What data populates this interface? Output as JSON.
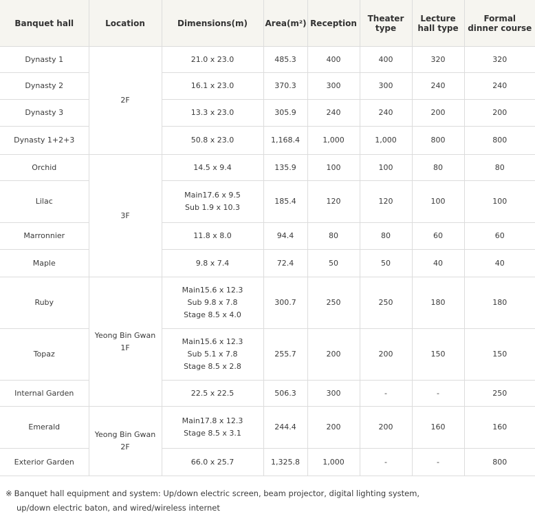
{
  "headers": [
    "Banquet hall",
    "Location",
    "Dimensions(m)",
    "Area(m²)",
    "Reception",
    "Theater\ntype",
    "Lecture\nhall type",
    "Formal\ndinner course"
  ],
  "locations": [
    "2F",
    "3F",
    "Yeong Bin Gwan\n1F",
    "Yeong Bin Gwan\n2F"
  ],
  "rows": [
    {
      "hall": "Dynasty 1",
      "dimensions": "21.0 x 23.0",
      "area": "485.3",
      "reception": "400",
      "theater": "400",
      "lecture": "320",
      "dinner": "320"
    },
    {
      "hall": "Dynasty 2",
      "dimensions": "16.1 x 23.0",
      "area": "370.3",
      "reception": "300",
      "theater": "300",
      "lecture": "240",
      "dinner": "240"
    },
    {
      "hall": "Dynasty 3",
      "dimensions": "13.3 x 23.0",
      "area": "305.9",
      "reception": "240",
      "theater": "240",
      "lecture": "200",
      "dinner": "200"
    },
    {
      "hall": "Dynasty 1+2+3",
      "dimensions": "50.8 x 23.0",
      "area": "1,168.4",
      "reception": "1,000",
      "theater": "1,000",
      "lecture": "800",
      "dinner": "800"
    },
    {
      "hall": "Orchid",
      "dimensions": "14.5 x 9.4",
      "area": "135.9",
      "reception": "100",
      "theater": "100",
      "lecture": "80",
      "dinner": "80"
    },
    {
      "hall": "Lilac",
      "dimensions": "Main17.6 x 9.5\nSub 1.9 x 10.3",
      "area": "185.4",
      "reception": "120",
      "theater": "120",
      "lecture": "100",
      "dinner": "100"
    },
    {
      "hall": "Marronnier",
      "dimensions": "11.8 x 8.0",
      "area": "94.4",
      "reception": "80",
      "theater": "80",
      "lecture": "60",
      "dinner": "60"
    },
    {
      "hall": "Maple",
      "dimensions": "9.8 x 7.4",
      "area": "72.4",
      "reception": "50",
      "theater": "50",
      "lecture": "40",
      "dinner": "40"
    },
    {
      "hall": "Ruby",
      "dimensions": "Main15.6 x 12.3\nSub 9.8 x 7.8\nStage 8.5 x 4.0",
      "area": "300.7",
      "reception": "250",
      "theater": "250",
      "lecture": "180",
      "dinner": "180"
    },
    {
      "hall": "Topaz",
      "dimensions": "Main15.6 x 12.3\nSub 5.1 x 7.8\nStage 8.5 x 2.8",
      "area": "255.7",
      "reception": "200",
      "theater": "200",
      "lecture": "150",
      "dinner": "150"
    },
    {
      "hall": "Internal Garden",
      "dimensions": "22.5 x 22.5",
      "area": "506.3",
      "reception": "300",
      "theater": "-",
      "lecture": "-",
      "dinner": "250"
    },
    {
      "hall": "Emerald",
      "dimensions": "Main17.8 x 12.3\nStage 8.5 x 3.1",
      "area": "244.4",
      "reception": "200",
      "theater": "200",
      "lecture": "160",
      "dinner": "160"
    },
    {
      "hall": "Exterior Garden",
      "dimensions": "66.0 x 25.7",
      "area": "1,325.8",
      "reception": "1,000",
      "theater": "-",
      "lecture": "-",
      "dinner": "800"
    }
  ],
  "note": {
    "mark": "※",
    "line1": "Banquet hall equipment and system: Up/down electric screen, beam projector, digital lighting system,",
    "line2": "up/down electric baton, and wired/wireless internet"
  }
}
